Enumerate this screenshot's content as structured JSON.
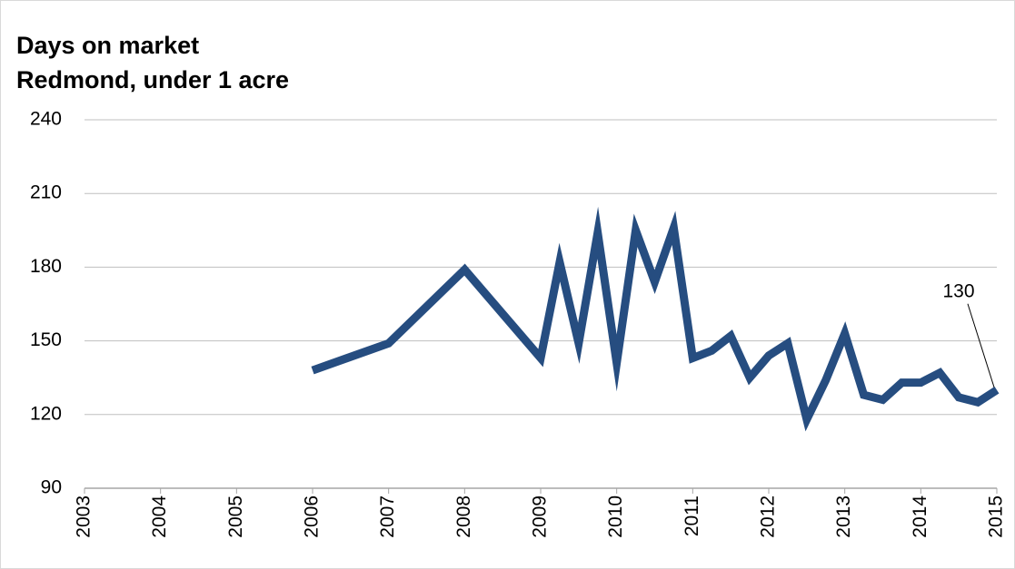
{
  "chart_data": {
    "type": "line",
    "title": "Days on market",
    "subtitle": "Redmond, under 1 acre",
    "x": [
      2006,
      2007,
      2008,
      2009,
      2009.25,
      2009.5,
      2009.75,
      2010,
      2010.25,
      2010.5,
      2010.75,
      2011,
      2011.25,
      2011.5,
      2011.75,
      2012,
      2012.25,
      2012.5,
      2012.75,
      2013,
      2013.25,
      2013.5,
      2013.75,
      2014,
      2014.25,
      2014.5,
      2014.75,
      2015
    ],
    "series": [
      {
        "color": "#264d80",
        "values": [
          138,
          149,
          179,
          143,
          182,
          149,
          194,
          141,
          195,
          174,
          196,
          143,
          146,
          152,
          135,
          144,
          149,
          118,
          134,
          153,
          128,
          126,
          133,
          133,
          137,
          127,
          125,
          130
        ]
      }
    ],
    "xlim": [
      2003,
      2015
    ],
    "xticks": [
      2003,
      2004,
      2005,
      2006,
      2007,
      2008,
      2009,
      2010,
      2011,
      2012,
      2013,
      2014,
      2015
    ],
    "ylim": [
      90,
      240
    ],
    "yticks": [
      90,
      120,
      150,
      180,
      210,
      240
    ],
    "grid": true
  }
}
